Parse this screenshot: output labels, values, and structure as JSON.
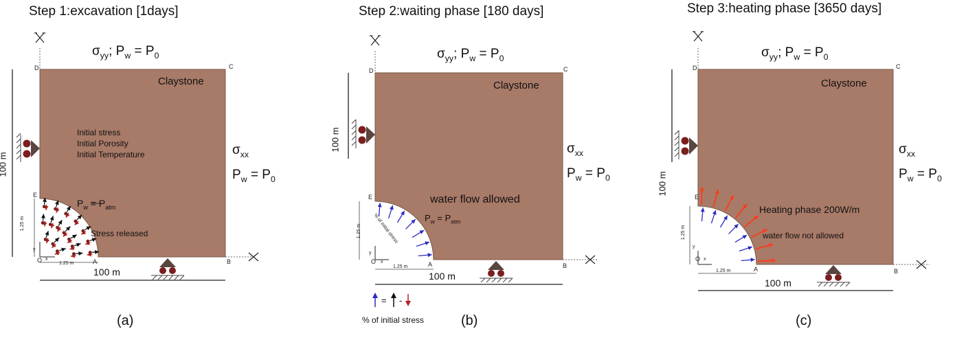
{
  "panels": [
    {
      "title": "Step 1:excavation [1days]",
      "caption": "(a)",
      "material": "Claystone",
      "top_bc": {
        "sigma": "σ",
        "sigma_sub": "yy",
        "rest": "; P",
        "w_sub": "w",
        "eq": " = P",
        "zero_sub": "0"
      },
      "right_bc": {
        "sigma": "σ",
        "sigma_sub": "xx",
        "p": "P",
        "w_sub": "w",
        "eq": " = P",
        "zero_sub": "0"
      },
      "height_label": "100 m",
      "width_label": "100 m",
      "radius_x_label": "1.25 m",
      "radius_y_label": "1.25 m",
      "points": {
        "A": "A",
        "B": "B",
        "C": "C",
        "D": "D",
        "E": "E",
        "O": "O"
      },
      "axis_x": "x",
      "axis_y": "y",
      "initial": [
        "Initial stress",
        "Initial Porosity",
        "Initial Temperature"
      ],
      "pw_label": {
        "p": "P",
        "w_sub": "w",
        "sep": " = P",
        "atm_sub": "atm"
      },
      "stress_released": "Stress released"
    },
    {
      "title": "Step 2:waiting phase [180 days]",
      "caption": "(b)",
      "material": "Claystone",
      "top_bc": {
        "sigma": "σ",
        "sigma_sub": "yy",
        "rest": "; P",
        "w_sub": "w",
        "eq": " = P",
        "zero_sub": "0"
      },
      "right_bc": {
        "sigma": "σ",
        "sigma_sub": "xx",
        "p": "P",
        "w_sub": "w",
        "eq": " = P",
        "zero_sub": "0"
      },
      "height_label": "100 m",
      "width_label": "100 m",
      "radius_x_label": "1.25 m",
      "radius_y_label": "1.25 m",
      "points": {
        "A": "A",
        "B": "B",
        "C": "C",
        "D": "D",
        "E": "E",
        "O": "O"
      },
      "axis_x": "x",
      "axis_y": "y",
      "water_flow": "water flow allowed",
      "pw_label": {
        "p": "P",
        "w_sub": "w",
        "sep": " = P",
        "atm_sub": "atm"
      },
      "arc_note": "% of initial stress",
      "legend_eq": "=",
      "legend_minus": "-",
      "legend_text": "% of initial stress"
    },
    {
      "title": "Step 3:heating phase [3650 days]",
      "caption": "(c)",
      "material": "Claystone",
      "top_bc": {
        "sigma": "σ",
        "sigma_sub": "yy",
        "rest": "; P",
        "w_sub": "w",
        "eq": " = P",
        "zero_sub": "0"
      },
      "right_bc": {
        "sigma": "σ",
        "sigma_sub": "xx",
        "p": "P",
        "w_sub": "w",
        "eq": " = P",
        "zero_sub": "0"
      },
      "height_label": "100 m",
      "width_label": "100 m",
      "radius_x_label": "1.25 m",
      "radius_y_label": "1.25 m",
      "points": {
        "A": "A",
        "B": "B",
        "C": "C",
        "D": "D",
        "E": "E",
        "O": "O"
      },
      "axis_x": "x",
      "axis_y": "y",
      "heating": "Heating phase 200W/m",
      "water_flow": "water flow not allowed"
    }
  ],
  "colors": {
    "claystone": "#a87a68",
    "claystone_edge": "#7a5546",
    "support": "#5a4540",
    "roller": "#7a1f1f",
    "arrow_black": "#111111",
    "arrow_red": "#b02020",
    "arrow_blue": "#2a2ac0",
    "arrow_heat": "#ff3a1a"
  }
}
